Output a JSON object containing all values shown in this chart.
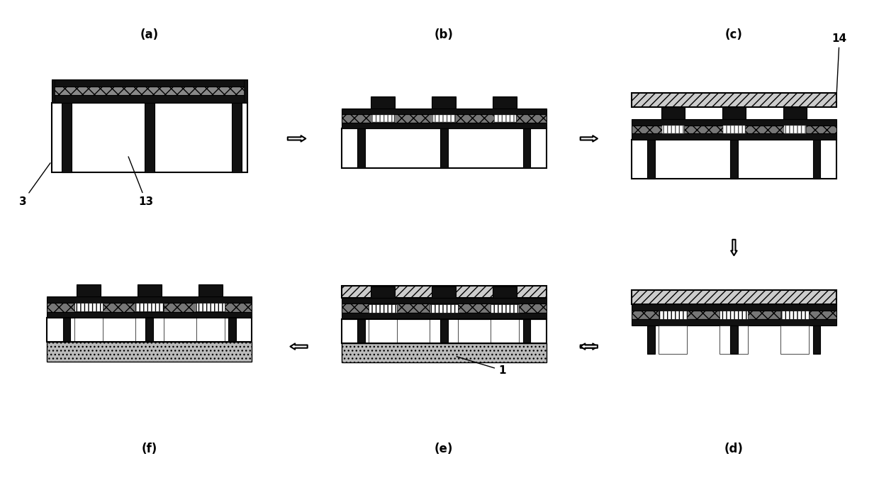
{
  "bg_color": "#ffffff",
  "panels": [
    "(a)",
    "(b)",
    "(c)",
    "(f)",
    "(e)",
    "(d)"
  ],
  "panel_labels_display": [
    "(a)",
    "(b)",
    "(c)",
    "(f)",
    "(e)",
    "(d)"
  ],
  "colors": {
    "black": "#000000",
    "white": "#ffffff",
    "very_dark": "#111111",
    "dark": "#222222",
    "medium_dark": "#444444",
    "light_gray": "#cccccc",
    "dot_gray": "#aaaaaa",
    "substrate_dot": "#b8b8b8"
  },
  "arrow_hollow_fc": "#ffffff",
  "arrow_ec": "#000000"
}
